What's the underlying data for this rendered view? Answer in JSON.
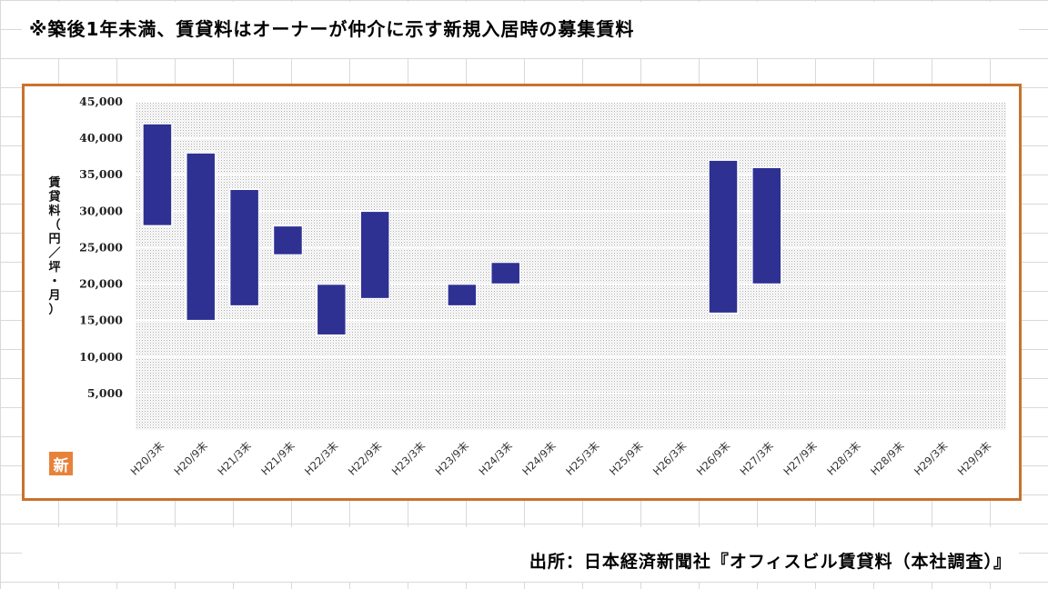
{
  "header": {
    "note": "※築後1年未満、賃貸料はオーナーが仲介に示す新規入居時の募集賃料"
  },
  "footer": {
    "source": "出所：日本経済新聞社『オフィスビル賃貸料（本社調査）』"
  },
  "badge": {
    "label": "新",
    "color": "#e8823a"
  },
  "chart_data": {
    "type": "bar",
    "subtype": "floating-range",
    "ylabel": "賃貸料（円／坪・月）",
    "ylim": [
      0,
      45000
    ],
    "yticks": [
      5000,
      10000,
      15000,
      20000,
      25000,
      30000,
      35000,
      40000,
      45000
    ],
    "ytick_labels": [
      "5,000",
      "10,000",
      "15,000",
      "20,000",
      "25,000",
      "30,000",
      "35,000",
      "40,000",
      "45,000"
    ],
    "categories": [
      "H20/3末",
      "H20/9末",
      "H21/3末",
      "H21/9末",
      "H22/3末",
      "H22/9末",
      "H23/3末",
      "H23/9末",
      "H24/3末",
      "H24/9末",
      "H25/3末",
      "H25/9末",
      "H26/3末",
      "H26/9末",
      "H27/3末",
      "H27/9末",
      "H28/3末",
      "H28/9末",
      "H29/3末",
      "H29/9末"
    ],
    "ranges": [
      [
        28000,
        42000
      ],
      [
        15000,
        38000
      ],
      [
        17000,
        33000
      ],
      [
        24000,
        28000
      ],
      [
        13000,
        20000
      ],
      [
        18000,
        30000
      ],
      null,
      [
        17000,
        20000
      ],
      [
        20000,
        23000
      ],
      null,
      null,
      null,
      null,
      [
        16000,
        37000
      ],
      [
        20000,
        36000
      ],
      null,
      null,
      null,
      null,
      null
    ],
    "bar_color": "#2e3192",
    "plot_background": "dotted-gray",
    "grid": true
  }
}
